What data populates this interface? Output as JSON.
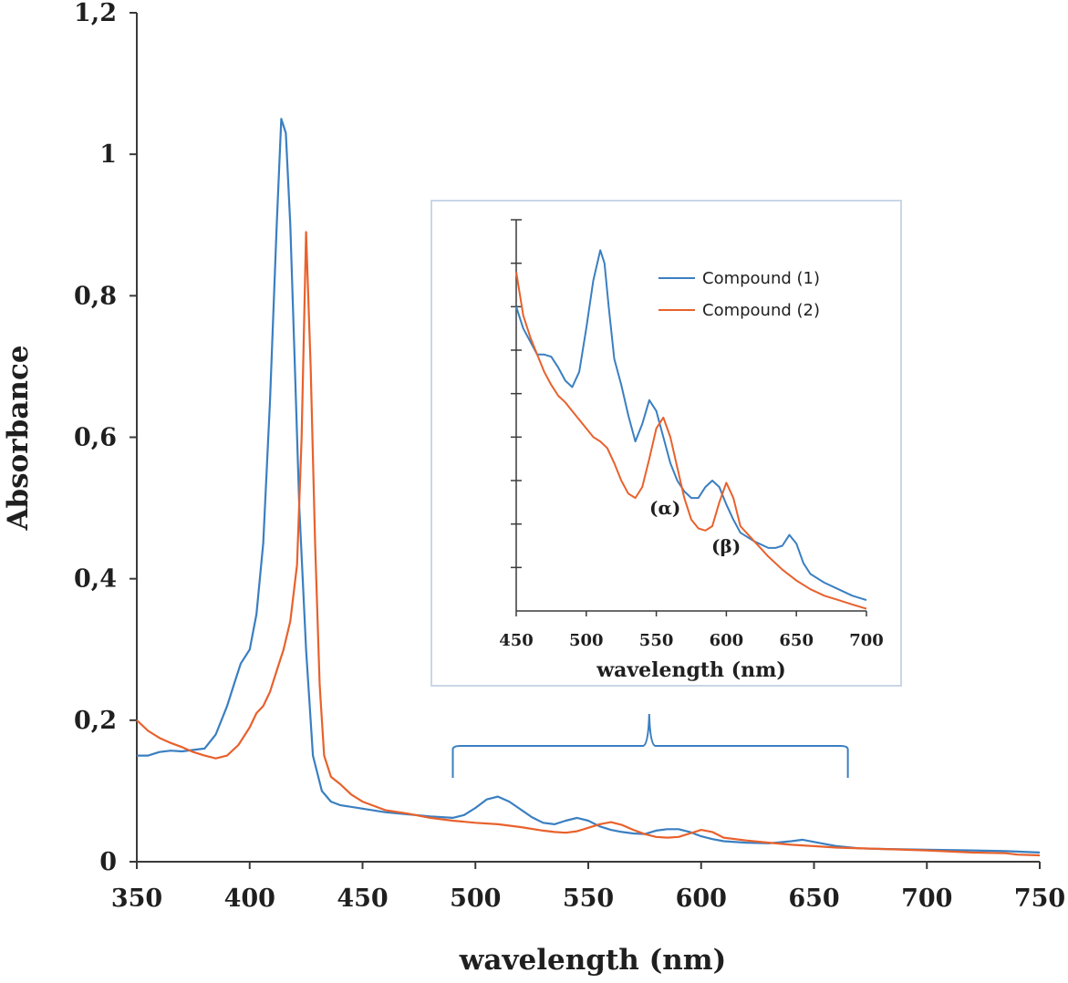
{
  "chart_data": [
    {
      "type": "line",
      "xlabel": "wavelength (nm)",
      "ylabel": "Absorbance",
      "xlim": [
        350,
        750
      ],
      "ylim": [
        0,
        1.2
      ],
      "x_ticks": [
        "350",
        "400",
        "450",
        "500",
        "550",
        "600",
        "650",
        "700",
        "750"
      ],
      "y_ticks": [
        "0",
        "0,2",
        "0,4",
        "0,6",
        "0,8",
        "1",
        "1,2"
      ],
      "series": [
        {
          "name": "Compound (1)",
          "color": "#3a7fc1",
          "x": [
            350,
            355,
            360,
            365,
            370,
            375,
            380,
            385,
            390,
            393,
            396,
            400,
            403,
            406,
            409,
            412,
            414,
            416,
            418,
            420,
            422,
            425,
            428,
            432,
            436,
            440,
            450,
            460,
            470,
            480,
            490,
            495,
            500,
            505,
            510,
            515,
            520,
            525,
            530,
            535,
            540,
            545,
            550,
            555,
            560,
            565,
            570,
            575,
            580,
            585,
            590,
            595,
            600,
            605,
            610,
            620,
            630,
            640,
            645,
            650,
            660,
            670,
            680,
            700,
            720,
            735,
            750
          ],
          "y": [
            0.15,
            0.15,
            0.155,
            0.157,
            0.156,
            0.158,
            0.16,
            0.18,
            0.22,
            0.25,
            0.28,
            0.3,
            0.35,
            0.45,
            0.65,
            0.9,
            1.05,
            1.03,
            0.9,
            0.7,
            0.5,
            0.3,
            0.15,
            0.1,
            0.085,
            0.08,
            0.075,
            0.07,
            0.067,
            0.064,
            0.062,
            0.066,
            0.076,
            0.088,
            0.092,
            0.085,
            0.074,
            0.063,
            0.055,
            0.053,
            0.058,
            0.062,
            0.058,
            0.05,
            0.045,
            0.042,
            0.04,
            0.039,
            0.044,
            0.046,
            0.046,
            0.042,
            0.036,
            0.032,
            0.029,
            0.027,
            0.026,
            0.029,
            0.031,
            0.028,
            0.022,
            0.019,
            0.018,
            0.017,
            0.016,
            0.015,
            0.013
          ]
        },
        {
          "name": "Compound (2)",
          "color": "#e8612c",
          "x": [
            350,
            355,
            360,
            365,
            370,
            375,
            380,
            385,
            390,
            395,
            400,
            403,
            406,
            409,
            412,
            415,
            418,
            421,
            423,
            425,
            427,
            429,
            431,
            433,
            436,
            440,
            445,
            450,
            460,
            470,
            480,
            490,
            500,
            510,
            520,
            530,
            535,
            540,
            545,
            550,
            555,
            560,
            565,
            570,
            575,
            580,
            585,
            590,
            595,
            600,
            605,
            610,
            620,
            630,
            640,
            650,
            660,
            680,
            700,
            720,
            735,
            740,
            750
          ],
          "y": [
            0.2,
            0.185,
            0.175,
            0.168,
            0.162,
            0.155,
            0.15,
            0.146,
            0.15,
            0.165,
            0.19,
            0.21,
            0.22,
            0.24,
            0.27,
            0.3,
            0.34,
            0.42,
            0.6,
            0.89,
            0.7,
            0.45,
            0.25,
            0.15,
            0.12,
            0.11,
            0.095,
            0.085,
            0.073,
            0.068,
            0.062,
            0.058,
            0.055,
            0.053,
            0.049,
            0.044,
            0.042,
            0.041,
            0.043,
            0.048,
            0.053,
            0.056,
            0.052,
            0.045,
            0.039,
            0.035,
            0.034,
            0.035,
            0.04,
            0.045,
            0.042,
            0.034,
            0.03,
            0.027,
            0.024,
            0.022,
            0.02,
            0.018,
            0.016,
            0.013,
            0.012,
            0.01,
            0.009
          ]
        }
      ],
      "annotation": "brace spanning approximately 490–665 nm marking the inset region"
    },
    {
      "type": "line",
      "role": "inset",
      "xlabel": "wavelength (nm)",
      "ylabel": "",
      "xlim": [
        450,
        700
      ],
      "x_ticks": [
        "450",
        "500",
        "550",
        "600",
        "650",
        "700"
      ],
      "y_tick_count": 9,
      "y_scale": "relative (unlabeled)",
      "legend_position": "top-right",
      "legend": [
        "Compound (1)",
        "Compound (2)"
      ],
      "annotations": [
        "(α)",
        "(β)"
      ],
      "series": [
        {
          "name": "Compound (1)",
          "color": "#3a7fc1",
          "x": [
            450,
            455,
            460,
            465,
            470,
            475,
            480,
            485,
            490,
            495,
            500,
            505,
            510,
            513,
            516,
            520,
            525,
            530,
            535,
            540,
            545,
            550,
            555,
            560,
            565,
            570,
            575,
            580,
            585,
            590,
            595,
            600,
            605,
            610,
            620,
            630,
            635,
            640,
            645,
            650,
            655,
            660,
            670,
            680,
            690,
            700
          ],
          "y": [
            7.0,
            6.5,
            6.2,
            5.9,
            5.9,
            5.85,
            5.6,
            5.3,
            5.15,
            5.5,
            6.5,
            7.6,
            8.3,
            8.0,
            7.0,
            5.8,
            5.2,
            4.5,
            3.9,
            4.3,
            4.85,
            4.6,
            4.0,
            3.4,
            3.0,
            2.75,
            2.6,
            2.6,
            2.85,
            3.0,
            2.85,
            2.45,
            2.1,
            1.8,
            1.6,
            1.45,
            1.45,
            1.5,
            1.75,
            1.55,
            1.1,
            0.85,
            0.65,
            0.5,
            0.35,
            0.25
          ]
        },
        {
          "name": "Compound (2)",
          "color": "#e8612c",
          "x": [
            450,
            455,
            460,
            465,
            470,
            475,
            480,
            485,
            490,
            495,
            500,
            505,
            510,
            515,
            520,
            525,
            530,
            535,
            540,
            545,
            550,
            555,
            560,
            565,
            570,
            575,
            580,
            585,
            590,
            595,
            600,
            605,
            610,
            620,
            630,
            640,
            650,
            660,
            670,
            680,
            690,
            700
          ],
          "y": [
            7.8,
            6.8,
            6.3,
            5.9,
            5.5,
            5.2,
            4.95,
            4.8,
            4.6,
            4.4,
            4.2,
            4.0,
            3.9,
            3.75,
            3.4,
            3.0,
            2.7,
            2.6,
            2.85,
            3.5,
            4.2,
            4.45,
            4.0,
            3.3,
            2.6,
            2.1,
            1.9,
            1.85,
            1.95,
            2.5,
            2.95,
            2.6,
            1.95,
            1.6,
            1.25,
            0.95,
            0.7,
            0.5,
            0.35,
            0.25,
            0.15,
            0.05
          ]
        }
      ]
    }
  ]
}
